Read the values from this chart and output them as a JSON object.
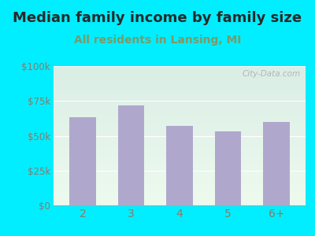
{
  "title": "Median family income by family size",
  "subtitle": "All residents in Lansing, MI",
  "categories": [
    "2",
    "3",
    "4",
    "5",
    "6+"
  ],
  "values": [
    63000,
    72000,
    57000,
    53000,
    60000
  ],
  "bar_color": "#b0a8cc",
  "background_outer": "#00eeff",
  "title_color": "#2a2a2a",
  "subtitle_color": "#7a9a6a",
  "tick_color": "#8a7a6a",
  "ylim": [
    0,
    100000
  ],
  "yticks": [
    0,
    25000,
    50000,
    75000,
    100000
  ],
  "ytick_labels": [
    "$0",
    "$25k",
    "$50k",
    "$75k",
    "$100k"
  ],
  "title_fontsize": 13,
  "subtitle_fontsize": 10,
  "watermark": "City-Data.com",
  "plot_bg_top": "#daeee6",
  "plot_bg_bottom": "#eefaee"
}
